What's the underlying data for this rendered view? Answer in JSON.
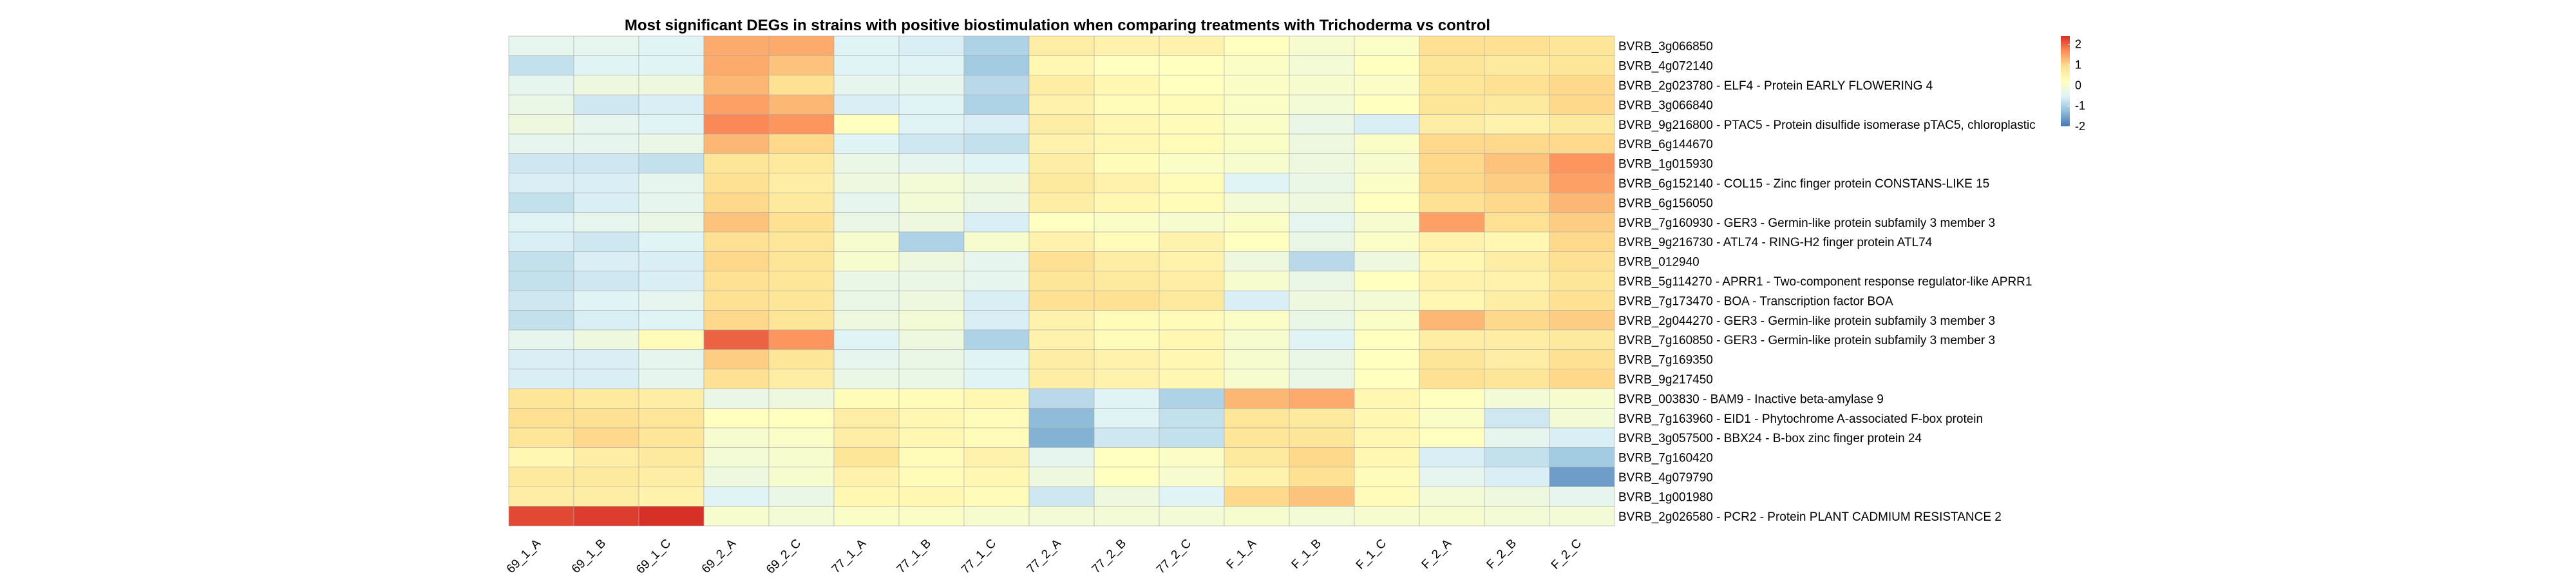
{
  "chart_data": {
    "type": "heatmap",
    "title": "Most significant DEGs in strains with positive biostimulation when comparing treatments with Trichoderma vs control",
    "columns": [
      "69_1_A",
      "69_1_B",
      "69_1_C",
      "69_2_A",
      "69_2_C",
      "77_1_A",
      "77_1_B",
      "77_1_C",
      "77_2_A",
      "77_2_B",
      "77_2_C",
      "F_1_A",
      "F_1_B",
      "F_1_C",
      "F_2_A",
      "F_2_B",
      "F_2_C"
    ],
    "rows": [
      {
        "label": "BVRB_3g066850",
        "values": [
          -0.4,
          -0.4,
          -0.5,
          1.4,
          1.4,
          -0.5,
          -0.6,
          -1.0,
          0.6,
          0.5,
          0.5,
          0.2,
          0.0,
          0.1,
          0.9,
          0.9,
          0.8
        ]
      },
      {
        "label": "BVRB_4g072140",
        "values": [
          -0.8,
          -0.5,
          -0.5,
          1.4,
          1.2,
          -0.5,
          -0.5,
          -1.1,
          0.4,
          0.2,
          0.2,
          0.1,
          -0.1,
          0.2,
          0.8,
          0.7,
          0.8
        ]
      },
      {
        "label": "BVRB_2g023780 - ELF4 - Protein EARLY FLOWERING 4",
        "values": [
          -0.4,
          -0.2,
          -0.2,
          1.3,
          0.9,
          -0.4,
          -0.4,
          -0.9,
          0.6,
          0.4,
          0.2,
          0.1,
          0.0,
          0.1,
          0.8,
          0.9,
          1.0
        ]
      },
      {
        "label": "BVRB_3g066840",
        "values": [
          -0.3,
          -0.7,
          -0.6,
          1.5,
          1.3,
          -0.6,
          -0.5,
          -1.0,
          0.5,
          0.3,
          0.3,
          0.1,
          -0.1,
          0.2,
          0.8,
          0.7,
          1.0
        ]
      },
      {
        "label": "BVRB_9g216800 - PTAC5 - Protein disulfide isomerase pTAC5, chloroplastic",
        "values": [
          -0.2,
          -0.4,
          -0.5,
          1.7,
          1.6,
          0.2,
          -0.5,
          -0.6,
          0.6,
          0.4,
          0.3,
          0.1,
          -0.3,
          -0.6,
          0.6,
          0.5,
          0.7
        ]
      },
      {
        "label": "BVRB_6g144670",
        "values": [
          -0.4,
          -0.4,
          -0.3,
          1.3,
          1.0,
          -0.5,
          -0.7,
          -0.8,
          0.5,
          0.4,
          0.3,
          0.1,
          -0.2,
          0.1,
          1.0,
          1.0,
          1.0
        ]
      },
      {
        "label": "BVRB_1g015930",
        "values": [
          -0.7,
          -0.7,
          -0.8,
          0.8,
          0.7,
          -0.3,
          -0.4,
          -0.5,
          0.6,
          0.3,
          0.1,
          0.0,
          -0.2,
          0.0,
          1.0,
          1.2,
          1.6
        ]
      },
      {
        "label": "BVRB_6g152140 - COL15 - Zinc finger protein CONSTANS-LIKE 15",
        "values": [
          -0.6,
          -0.6,
          -0.4,
          0.9,
          0.6,
          -0.2,
          -0.1,
          -0.2,
          0.7,
          0.5,
          0.3,
          -0.5,
          -0.3,
          0.1,
          1.0,
          1.1,
          1.5
        ]
      },
      {
        "label": "BVRB_6g156050",
        "values": [
          -0.8,
          -0.6,
          -0.4,
          1.0,
          0.7,
          -0.4,
          -0.1,
          -0.3,
          0.6,
          0.4,
          0.3,
          -0.1,
          -0.2,
          0.2,
          0.9,
          1.0,
          1.3
        ]
      },
      {
        "label": "BVRB_7g160930 - GER3 - Germin-like protein subfamily 3 member 3",
        "values": [
          -0.5,
          -0.4,
          -0.3,
          1.2,
          0.9,
          -0.3,
          -0.2,
          -0.6,
          0.2,
          0.1,
          0.0,
          0.1,
          -0.4,
          0.0,
          1.5,
          0.9,
          1.1
        ]
      },
      {
        "label": "BVRB_9g216730 - ATL74 - RING-H2 finger protein ATL74",
        "values": [
          -0.6,
          -0.7,
          -0.5,
          0.9,
          0.8,
          0.0,
          -1.0,
          0.0,
          0.5,
          0.3,
          0.5,
          0.2,
          -0.3,
          0.1,
          0.5,
          0.4,
          1.0
        ]
      },
      {
        "label": "BVRB_012940",
        "values": [
          -0.8,
          -0.6,
          -0.6,
          1.0,
          0.8,
          0.0,
          -0.2,
          -0.4,
          0.9,
          0.6,
          0.5,
          -0.2,
          -0.9,
          -0.2,
          0.4,
          0.6,
          0.9
        ]
      },
      {
        "label": "BVRB_5g114270 - APRR1 - Two-component response regulator-like APRR1",
        "values": [
          -0.8,
          -0.7,
          -0.6,
          0.9,
          0.8,
          -0.3,
          -0.3,
          -0.4,
          0.8,
          0.7,
          0.6,
          0.0,
          -0.3,
          0.2,
          0.5,
          0.5,
          0.8
        ]
      },
      {
        "label": "BVRB_7g173470 - BOA - Transcription factor BOA",
        "values": [
          -0.7,
          -0.5,
          -0.4,
          0.9,
          0.8,
          -0.3,
          -0.2,
          -0.6,
          0.9,
          0.9,
          0.7,
          -0.6,
          -0.2,
          -0.1,
          0.4,
          0.6,
          0.9
        ]
      },
      {
        "label": "BVRB_2g044270 - GER3 - Germin-like protein subfamily 3 member 3",
        "values": [
          -0.8,
          -0.6,
          -0.5,
          1.0,
          0.8,
          -0.2,
          -0.1,
          -0.6,
          0.5,
          0.3,
          0.3,
          0.1,
          -0.3,
          0.1,
          1.3,
          1.0,
          1.1
        ]
      },
      {
        "label": "BVRB_7g160850 - GER3 - Germin-like protein subfamily 3 member 3",
        "values": [
          -0.4,
          -0.2,
          0.3,
          2.0,
          1.6,
          -0.5,
          -0.2,
          -1.0,
          0.5,
          0.3,
          0.4,
          0.0,
          -0.5,
          0.2,
          0.6,
          0.6,
          0.7
        ]
      },
      {
        "label": "BVRB_7g169350",
        "values": [
          -0.6,
          -0.6,
          -0.4,
          1.1,
          0.8,
          -0.4,
          -0.3,
          -0.5,
          0.6,
          0.5,
          0.4,
          0.0,
          -0.3,
          0.2,
          0.8,
          0.6,
          0.9
        ]
      },
      {
        "label": "BVRB_9g217450",
        "values": [
          -0.6,
          -0.6,
          -0.4,
          0.9,
          0.6,
          -0.3,
          -0.3,
          -0.5,
          0.6,
          0.5,
          0.4,
          0.0,
          -0.3,
          0.2,
          0.9,
          0.8,
          1.0
        ]
      },
      {
        "label": "BVRB_003830 - BAM9 - Inactive beta-amylase 9",
        "values": [
          0.8,
          0.7,
          0.6,
          -0.3,
          -0.2,
          0.3,
          0.3,
          0.4,
          -0.9,
          -0.5,
          -1.0,
          1.3,
          1.4,
          0.4,
          0.2,
          -0.1,
          0.0
        ]
      },
      {
        "label": "BVRB_7g163960 - EID1 - Phytochrome A-associated F-box protein",
        "values": [
          0.9,
          0.9,
          0.8,
          0.2,
          0.2,
          0.6,
          0.4,
          0.3,
          -1.3,
          -0.5,
          -0.8,
          0.8,
          0.7,
          0.4,
          0.1,
          -0.7,
          -0.1
        ]
      },
      {
        "label": "BVRB_3g057500 - BBX24 - B-box zinc finger protein 24",
        "values": [
          0.8,
          1.0,
          0.8,
          0.0,
          0.1,
          0.6,
          0.4,
          0.3,
          -1.4,
          -0.7,
          -0.8,
          0.8,
          0.8,
          0.4,
          0.2,
          -0.4,
          -0.6
        ]
      },
      {
        "label": "BVRB_7g160420",
        "values": [
          0.4,
          0.6,
          0.7,
          -0.1,
          0.0,
          0.8,
          0.3,
          0.5,
          -0.4,
          0.2,
          0.1,
          0.7,
          1.0,
          0.4,
          -0.6,
          -0.8,
          -1.1
        ]
      },
      {
        "label": "BVRB_4g079790",
        "values": [
          0.7,
          0.7,
          0.6,
          -0.2,
          0.0,
          0.5,
          0.3,
          0.4,
          -0.2,
          0.2,
          0.0,
          0.5,
          0.9,
          0.3,
          -0.4,
          -0.6,
          -1.6
        ]
      },
      {
        "label": "BVRB_1g001980",
        "values": [
          0.6,
          0.6,
          0.5,
          -0.5,
          -0.3,
          0.4,
          0.4,
          0.3,
          -0.7,
          -0.2,
          -0.5,
          1.0,
          1.2,
          0.3,
          -0.1,
          -0.2,
          -0.4
        ]
      },
      {
        "label": "BVRB_2g026580 - PCR2 - Protein PLANT CADMIUM RESISTANCE 2",
        "values": [
          2.2,
          2.3,
          2.4,
          0.0,
          -0.1,
          0.1,
          0.1,
          0.0,
          -0.1,
          -0.1,
          -0.1,
          0.0,
          -0.1,
          0.0,
          0.0,
          -0.1,
          -0.1
        ]
      }
    ],
    "color_scale": {
      "min": -2,
      "max": 2.4,
      "colors": [
        "#4575b4",
        "#91bfdb",
        "#e0f3f8",
        "#ffffbf",
        "#fee090",
        "#fc8d59",
        "#d73027"
      ],
      "ticks": [
        2,
        1,
        0,
        -1,
        -2
      ]
    },
    "legend_position": "top-right"
  }
}
